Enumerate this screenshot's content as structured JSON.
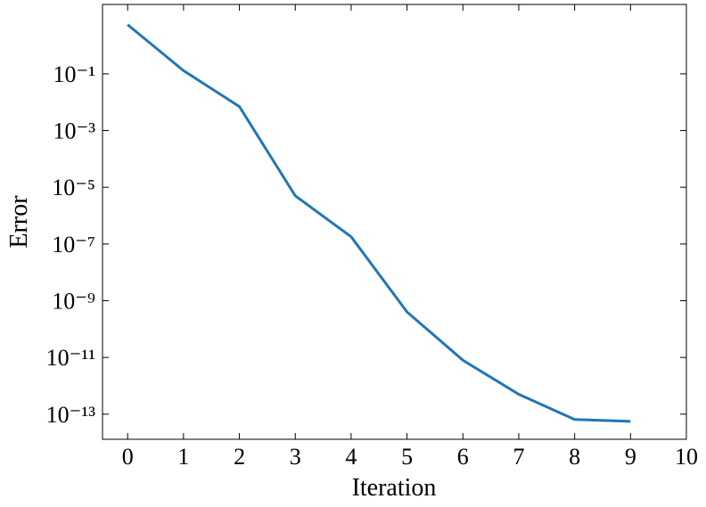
{
  "chart_data": {
    "type": "line",
    "xlabel": "Iteration",
    "ylabel": "Error",
    "log_y": true,
    "x": [
      0,
      1,
      2,
      3,
      4,
      5,
      6,
      7,
      8,
      9
    ],
    "series": [
      {
        "name": "Error",
        "color": "#1f77b4",
        "values": [
          5.4,
          0.13,
          0.007,
          5e-06,
          1.8e-07,
          4e-10,
          8e-12,
          5e-13,
          6.5e-14,
          5.6e-14
        ]
      }
    ],
    "xlim": [
      -0.45,
      10
    ],
    "ylim": [
      28,
      1.3e-14
    ],
    "xticks": [
      0,
      1,
      2,
      3,
      4,
      5,
      6,
      7,
      8,
      9,
      10
    ],
    "yticks": [
      {
        "value": 0.1,
        "label": "10⁻¹"
      },
      {
        "value": 0.001,
        "label": "10⁻³"
      },
      {
        "value": 1e-05,
        "label": "10⁻⁵"
      },
      {
        "value": 1e-07,
        "label": "10⁻⁷"
      },
      {
        "value": 1e-09,
        "label": "10⁻⁹"
      },
      {
        "value": 1e-11,
        "label": "10⁻¹¹"
      },
      {
        "value": 1e-13,
        "label": "10⁻¹³"
      }
    ]
  }
}
